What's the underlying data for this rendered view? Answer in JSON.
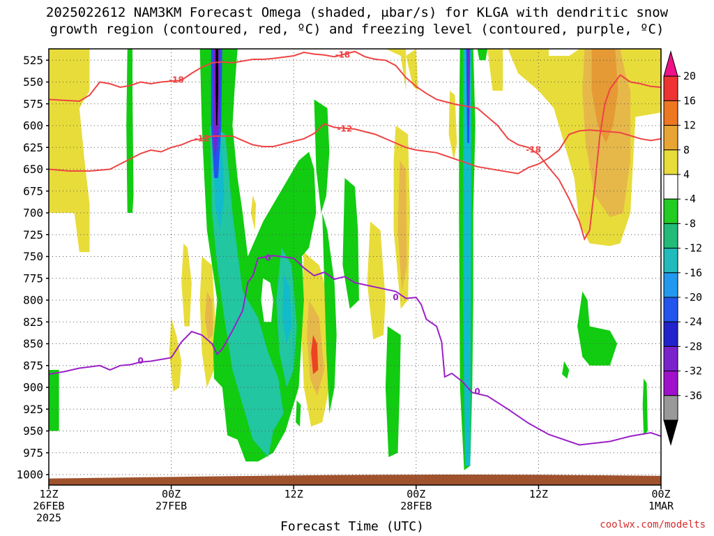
{
  "title_line1": "2025022612 NAM3KM Forecast Omega (shaded, μbar/s) for KLGA with dendritic snow",
  "title_line2": "growth region (contoured, red, ºC) and freezing level (contoured, purple, ºC)",
  "credit": "coolwx.com/modelts",
  "colors": {
    "green": "#11cc11",
    "teal": "#22c6a0",
    "cyan": "#11bbcc",
    "yellow": "#e8dc3a",
    "orange_light": "#e6b84a",
    "orange": "#e59a35",
    "red_contour": "#ee4444",
    "purple_contour": "#9a1fc8",
    "ground": "#a0522d",
    "grid": "#555555"
  },
  "chart_data": {
    "type": "heatmap",
    "title": "2025022612 NAM3KM Forecast Omega (shaded, μbar/s) for KLGA with dendritic snow growth region (contoured, red, ºC) and freezing level (contoured, purple, ºC)",
    "xlabel": "Forecast Time (UTC)",
    "ylabel": "",
    "x_ticks": [
      {
        "hour": 0,
        "label1": "12Z",
        "label2": "26FEB",
        "label3": "2025"
      },
      {
        "hour": 12,
        "label1": "00Z",
        "label2": "27FEB",
        "label3": ""
      },
      {
        "hour": 24,
        "label1": "12Z",
        "label2": "",
        "label3": ""
      },
      {
        "hour": 36,
        "label1": "00Z",
        "label2": "28FEB",
        "label3": ""
      },
      {
        "hour": 48,
        "label1": "12Z",
        "label2": "",
        "label3": ""
      },
      {
        "hour": 60,
        "label1": "00Z",
        "label2": "1MAR",
        "label3": ""
      }
    ],
    "x_range_hours": [
      0,
      60
    ],
    "y_ticks": [
      525,
      550,
      575,
      600,
      625,
      650,
      675,
      700,
      725,
      750,
      775,
      800,
      825,
      850,
      875,
      900,
      925,
      950,
      975,
      1000
    ],
    "y_range_hpa": [
      512,
      1012
    ],
    "colorbar_labels": [
      20,
      16,
      12,
      8,
      4,
      -4,
      -8,
      -12,
      -16,
      -20,
      -24,
      -28,
      -32,
      -36
    ],
    "freezing_level_0C": {
      "label": "0",
      "points": [
        [
          0,
          885
        ],
        [
          1.5,
          882
        ],
        [
          3,
          878
        ],
        [
          5,
          875
        ],
        [
          6,
          880
        ],
        [
          7,
          875
        ],
        [
          8,
          874
        ],
        [
          9,
          871
        ],
        [
          10,
          870
        ],
        [
          11,
          868
        ],
        [
          12,
          866
        ],
        [
          13,
          848
        ],
        [
          14,
          836
        ],
        [
          15,
          840
        ],
        [
          16,
          850
        ],
        [
          16.5,
          862
        ],
        [
          17,
          856
        ],
        [
          18,
          835
        ],
        [
          19,
          812
        ],
        [
          19.5,
          780
        ],
        [
          20,
          772
        ],
        [
          20.5,
          752
        ],
        [
          22,
          749
        ],
        [
          24,
          752
        ],
        [
          25,
          763
        ],
        [
          26,
          772
        ],
        [
          27,
          768
        ],
        [
          28,
          776
        ],
        [
          29,
          773
        ],
        [
          30,
          780
        ],
        [
          32,
          785
        ],
        [
          34,
          790
        ],
        [
          35,
          798
        ],
        [
          36,
          797
        ],
        [
          36.5,
          805
        ],
        [
          37,
          822
        ],
        [
          38,
          830
        ],
        [
          38.5,
          848
        ],
        [
          38.8,
          888
        ],
        [
          39.5,
          884
        ],
        [
          40.5,
          893
        ],
        [
          41.5,
          906
        ],
        [
          43,
          910
        ],
        [
          45,
          925
        ],
        [
          47,
          941
        ],
        [
          49,
          954
        ],
        [
          52,
          966
        ],
        [
          55,
          962
        ],
        [
          57,
          956
        ],
        [
          59,
          952
        ],
        [
          60,
          956
        ]
      ]
    },
    "contour_m12C": {
      "label": "-12",
      "points": [
        [
          0,
          650
        ],
        [
          2,
          652
        ],
        [
          4,
          652
        ],
        [
          6,
          650
        ],
        [
          7,
          644
        ],
        [
          8,
          638
        ],
        [
          9,
          632
        ],
        [
          10,
          628
        ],
        [
          11,
          630
        ],
        [
          12,
          625
        ],
        [
          13,
          622
        ],
        [
          14,
          617
        ],
        [
          15,
          615
        ],
        [
          16,
          612
        ],
        [
          17,
          612
        ],
        [
          18,
          612
        ],
        [
          19,
          617
        ],
        [
          20,
          622
        ],
        [
          21,
          624
        ],
        [
          22,
          624
        ],
        [
          24,
          618
        ],
        [
          25,
          615
        ],
        [
          26,
          609
        ],
        [
          27,
          598
        ],
        [
          28,
          602
        ],
        [
          30,
          604
        ],
        [
          32,
          610
        ],
        [
          34,
          620
        ],
        [
          35,
          625
        ],
        [
          36,
          628
        ],
        [
          38,
          631
        ],
        [
          40,
          639
        ],
        [
          42,
          647
        ],
        [
          44,
          651
        ],
        [
          46,
          655
        ],
        [
          47,
          648
        ],
        [
          48,
          644
        ],
        [
          49,
          637
        ],
        [
          50,
          628
        ],
        [
          51,
          610
        ],
        [
          52,
          606
        ],
        [
          53,
          605
        ],
        [
          54,
          606
        ],
        [
          55,
          607
        ],
        [
          56,
          608
        ],
        [
          58,
          615
        ],
        [
          59,
          617
        ],
        [
          60,
          615
        ]
      ]
    },
    "contour_m18C": {
      "label": "-18",
      "points": [
        [
          0,
          570
        ],
        [
          3,
          572
        ],
        [
          4,
          565
        ],
        [
          5,
          550
        ],
        [
          6,
          552
        ],
        [
          7,
          556
        ],
        [
          8,
          554
        ],
        [
          9,
          550
        ],
        [
          10,
          552
        ],
        [
          11,
          550
        ],
        [
          12,
          549
        ],
        [
          13,
          548
        ],
        [
          14,
          540
        ],
        [
          15,
          533
        ],
        [
          16,
          528
        ],
        [
          17,
          527
        ],
        [
          18,
          528
        ],
        [
          19,
          526
        ],
        [
          20,
          524
        ],
        [
          21,
          524
        ],
        [
          22,
          523
        ],
        [
          24,
          520
        ],
        [
          25,
          516
        ],
        [
          26,
          518
        ],
        [
          27,
          519
        ],
        [
          28,
          521
        ],
        [
          29,
          518
        ],
        [
          30,
          515
        ],
        [
          31,
          521
        ],
        [
          32,
          524
        ],
        [
          33,
          525
        ],
        [
          34,
          531
        ],
        [
          35,
          545
        ],
        [
          36,
          555
        ],
        [
          37,
          563
        ],
        [
          38,
          570
        ],
        [
          40,
          576
        ],
        [
          42,
          580
        ],
        [
          43,
          590
        ],
        [
          44,
          600
        ],
        [
          45,
          615
        ],
        [
          46,
          622
        ],
        [
          47,
          625
        ],
        [
          48,
          633
        ],
        [
          49,
          648
        ],
        [
          50,
          662
        ],
        [
          51,
          684
        ],
        [
          52,
          710
        ],
        [
          52.5,
          730
        ],
        [
          53,
          720
        ],
        [
          53.5,
          670
        ],
        [
          54,
          612
        ],
        [
          54.5,
          575
        ],
        [
          55,
          558
        ],
        [
          56,
          542
        ],
        [
          57,
          550
        ],
        [
          58,
          552
        ],
        [
          59,
          555
        ],
        [
          60,
          556
        ]
      ]
    },
    "shading_description_points": [
      {
        "name": "strong-upward-band-1",
        "hour": 16,
        "min_value": -36
      },
      {
        "name": "strong-upward-band-2",
        "hour": 41,
        "min_value": -28
      },
      {
        "name": "downward-max-east",
        "hour": 53,
        "max_value": 12
      }
    ]
  }
}
